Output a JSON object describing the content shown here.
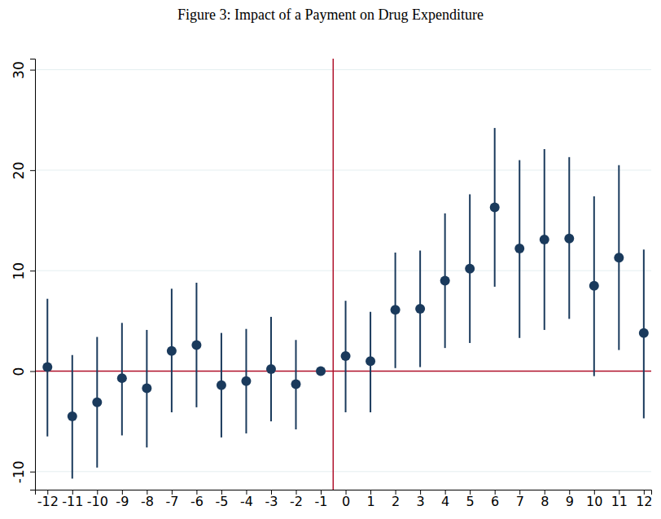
{
  "chart_data": {
    "type": "scatter",
    "title": "Figure 3: Impact of a Payment on Drug Expenditure",
    "x": [
      -12,
      -11,
      -10,
      -9,
      -8,
      -7,
      -6,
      -5,
      -4,
      -3,
      -2,
      -1,
      0,
      1,
      2,
      3,
      4,
      5,
      6,
      7,
      8,
      9,
      10,
      11,
      12
    ],
    "series": [
      {
        "color": "#1a3a5c",
        "marker": "circle",
        "values": [
          0.4,
          -4.5,
          -3.1,
          -0.7,
          -1.7,
          2.0,
          2.6,
          -1.4,
          -1.0,
          0.2,
          -1.3,
          0,
          1.5,
          1.0,
          6.1,
          6.2,
          9.0,
          10.2,
          16.3,
          12.2,
          13.1,
          13.2,
          8.5,
          11.3,
          3.8
        ],
        "lower": [
          -6.5,
          -10.7,
          -9.6,
          -6.4,
          -7.6,
          -4.1,
          -3.6,
          -6.6,
          -6.2,
          -5.0,
          -5.8,
          0,
          -4.1,
          -4.1,
          0.3,
          0.4,
          2.3,
          2.8,
          8.4,
          3.3,
          4.1,
          5.2,
          -0.5,
          2.1,
          -4.7
        ],
        "upper": [
          7.2,
          1.6,
          3.4,
          4.8,
          4.1,
          8.2,
          8.8,
          3.8,
          4.2,
          5.4,
          3.1,
          0,
          7.0,
          5.9,
          11.8,
          12.0,
          15.7,
          17.6,
          24.2,
          21.0,
          22.1,
          21.3,
          17.4,
          20.5,
          12.1
        ]
      }
    ],
    "vlines": [
      -0.5
    ],
    "hlines": [
      0
    ],
    "xlim": [
      -12.5,
      12.3
    ],
    "ylim": [
      -11.8,
      31.1
    ],
    "xticks": [
      -12,
      -11,
      -10,
      -9,
      -8,
      -7,
      -6,
      -5,
      -4,
      -3,
      -2,
      -1,
      0,
      1,
      2,
      3,
      4,
      5,
      6,
      7,
      8,
      9,
      10,
      11,
      12
    ],
    "yticks": [
      -10,
      0,
      10,
      20,
      30
    ],
    "grid": true
  }
}
